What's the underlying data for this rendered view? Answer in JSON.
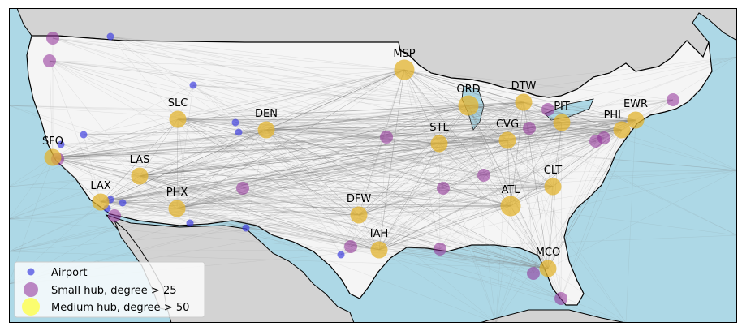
{
  "map": {
    "ocean_color": "#add8e6",
    "land_color": "#d3d3d3",
    "usa_color": "#f5f5f5",
    "edge_color": "#808080"
  },
  "legend": {
    "items": [
      {
        "label": "Airport",
        "color": "#4040e0"
      },
      {
        "label": "Small hub, degree > 25",
        "color": "#8e2a96"
      },
      {
        "label": "Medium hub, degree > 50",
        "color": "#ffff40"
      }
    ]
  },
  "hubs": [
    {
      "code": "MSP",
      "type": "medium"
    },
    {
      "code": "ORD",
      "type": "medium"
    },
    {
      "code": "DTW",
      "type": "medium"
    },
    {
      "code": "SLC",
      "type": "medium"
    },
    {
      "code": "DEN",
      "type": "medium"
    },
    {
      "code": "PIT",
      "type": "medium"
    },
    {
      "code": "EWR",
      "type": "medium"
    },
    {
      "code": "PHL",
      "type": "medium"
    },
    {
      "code": "STL",
      "type": "medium"
    },
    {
      "code": "CVG",
      "type": "medium"
    },
    {
      "code": "SFO",
      "type": "medium"
    },
    {
      "code": "LAS",
      "type": "medium"
    },
    {
      "code": "CLT",
      "type": "medium"
    },
    {
      "code": "LAX",
      "type": "medium"
    },
    {
      "code": "PHX",
      "type": "medium"
    },
    {
      "code": "ATL",
      "type": "medium"
    },
    {
      "code": "DFW",
      "type": "medium"
    },
    {
      "code": "IAH",
      "type": "medium"
    },
    {
      "code": "MCO",
      "type": "medium"
    }
  ]
}
